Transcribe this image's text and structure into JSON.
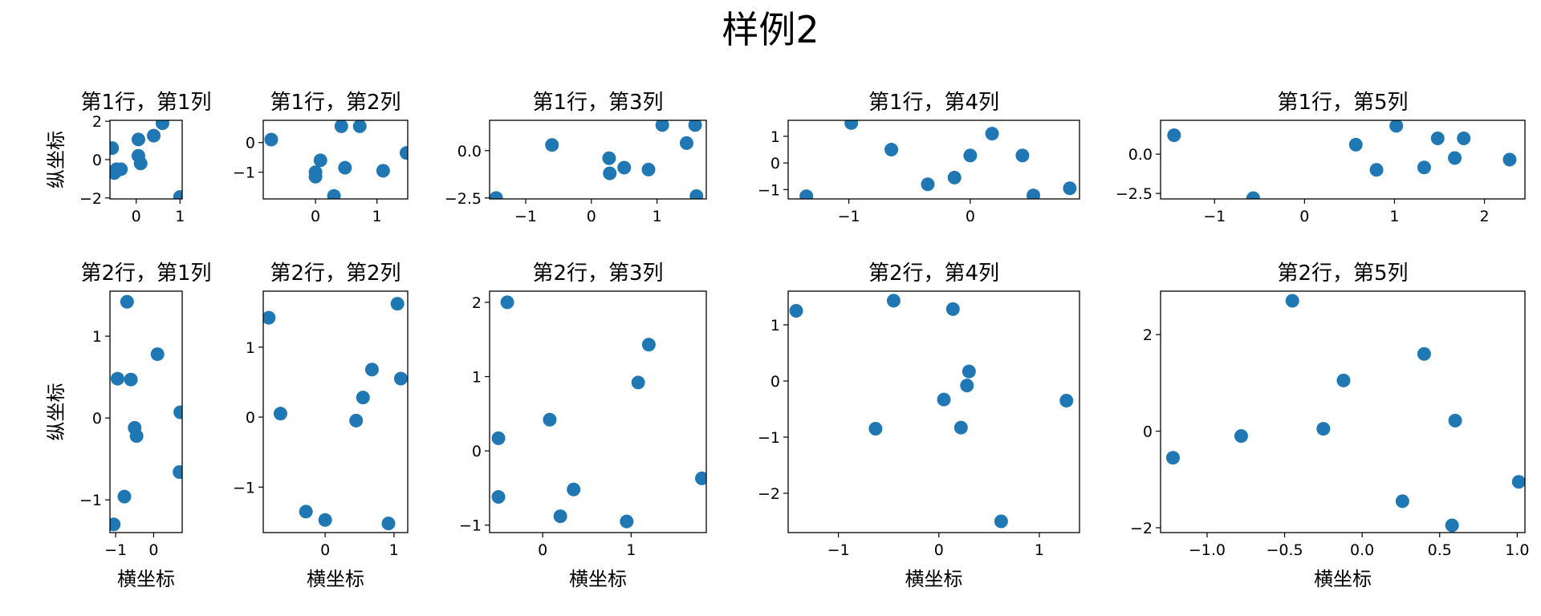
{
  "figure": {
    "suptitle": "样例2",
    "marker_color": "#1f77b4"
  },
  "chart_data": [
    {
      "type": "scatter",
      "title": "第1行，第1列",
      "xlabel": "",
      "ylabel": "纵坐标",
      "xlim": [
        -0.6,
        1.05
      ],
      "ylim": [
        -2.05,
        2.05
      ],
      "xticks": [
        {
          "v": 0,
          "label": "0"
        },
        {
          "v": 1,
          "label": "1"
        }
      ],
      "yticks": [
        {
          "v": 2,
          "label": "2"
        },
        {
          "v": 0,
          "label": "0"
        },
        {
          "v": -2,
          "label": "−2"
        }
      ],
      "x": [
        -0.55,
        -0.45,
        -0.35,
        0.05,
        0.05,
        0.1,
        0.4,
        0.6,
        1.0,
        -0.5
      ],
      "y": [
        0.6,
        -0.5,
        -0.5,
        0.2,
        1.05,
        -0.2,
        1.25,
        1.9,
        -1.95,
        -0.7
      ]
    },
    {
      "type": "scatter",
      "title": "第1行，第2列",
      "xlabel": "",
      "ylabel": "",
      "xlim": [
        -0.85,
        1.5
      ],
      "ylim": [
        -1.9,
        0.75
      ],
      "xticks": [
        {
          "v": 0,
          "label": "0"
        },
        {
          "v": 1,
          "label": "1"
        }
      ],
      "yticks": [
        {
          "v": 0,
          "label": "0"
        },
        {
          "v": -1,
          "label": "−1"
        }
      ],
      "x": [
        -0.72,
        0.0,
        0.0,
        0.08,
        0.3,
        0.42,
        0.48,
        0.72,
        1.1,
        1.48
      ],
      "y": [
        0.1,
        -1.0,
        -1.15,
        -0.6,
        -1.8,
        0.55,
        -0.85,
        0.55,
        -0.95,
        -0.35
      ],
      "ylim_note": ""
    },
    {
      "type": "scatter",
      "title": "第1行，第3列",
      "xlabel": "",
      "ylabel": "",
      "xlim": [
        -1.55,
        1.75
      ],
      "ylim": [
        -2.55,
        1.6
      ],
      "xticks": [
        {
          "v": -1,
          "label": "−1"
        },
        {
          "v": 0,
          "label": "0"
        },
        {
          "v": 1,
          "label": "1"
        }
      ],
      "yticks": [
        {
          "v": 0,
          "label": "0.0"
        },
        {
          "v": -2.5,
          "label": "−2.5"
        }
      ],
      "x": [
        -1.45,
        -0.6,
        0.27,
        0.28,
        0.5,
        0.87,
        1.08,
        1.45,
        1.58,
        1.6
      ],
      "y": [
        -2.5,
        0.3,
        -0.4,
        -1.2,
        -0.9,
        -1.0,
        1.35,
        0.4,
        1.35,
        -2.4
      ]
    },
    {
      "type": "scatter",
      "title": "第1行，第4列",
      "xlabel": "",
      "ylabel": "",
      "xlim": [
        -1.5,
        0.9
      ],
      "ylim": [
        -1.35,
        1.6
      ],
      "xticks": [
        {
          "v": -1,
          "label": "−1"
        },
        {
          "v": 0,
          "label": "0"
        }
      ],
      "yticks": [
        {
          "v": 1,
          "label": "1"
        },
        {
          "v": 0,
          "label": "0"
        },
        {
          "v": -1,
          "label": "−1"
        }
      ],
      "x": [
        -1.35,
        -0.98,
        -0.65,
        -0.35,
        -0.13,
        0.0,
        0.18,
        0.43,
        0.52,
        0.82
      ],
      "y": [
        -1.25,
        1.5,
        0.5,
        -0.8,
        -0.55,
        0.28,
        1.1,
        0.28,
        -1.22,
        -0.95
      ]
    },
    {
      "type": "scatter",
      "title": "第1行，第5列",
      "xlabel": "",
      "ylabel": "",
      "xlim": [
        -1.6,
        2.45
      ],
      "ylim": [
        -2.85,
        2.15
      ],
      "xticks": [
        {
          "v": -1,
          "label": "−1"
        },
        {
          "v": 0,
          "label": "0"
        },
        {
          "v": 1,
          "label": "1"
        },
        {
          "v": 2,
          "label": "2"
        }
      ],
      "yticks": [
        {
          "v": 0,
          "label": "0.0"
        },
        {
          "v": -2.5,
          "label": "−2.5"
        }
      ],
      "x": [
        -1.45,
        -0.57,
        0.57,
        0.8,
        1.02,
        1.33,
        1.48,
        1.67,
        1.77,
        2.28
      ],
      "y": [
        1.2,
        -2.8,
        0.6,
        -1.0,
        1.8,
        -0.85,
        1.0,
        -0.25,
        1.0,
        -0.35
      ]
    },
    {
      "type": "scatter",
      "title": "第2行，第1列",
      "xlabel": "横坐标",
      "ylabel": "纵坐标",
      "xlim": [
        -1.15,
        0.75
      ],
      "ylim": [
        -1.4,
        1.55
      ],
      "xticks": [
        {
          "v": -1,
          "label": "−1"
        },
        {
          "v": 0,
          "label": "0"
        }
      ],
      "yticks": [
        {
          "v": 1,
          "label": "1"
        },
        {
          "v": 0,
          "label": "0"
        },
        {
          "v": -1,
          "label": "−1"
        }
      ],
      "x": [
        -1.05,
        -0.95,
        -0.77,
        -0.7,
        -0.6,
        -0.5,
        -0.45,
        0.1,
        0.68,
        0.7
      ],
      "y": [
        -1.3,
        0.48,
        -0.96,
        1.42,
        0.47,
        -0.12,
        -0.22,
        0.78,
        -0.66,
        0.07
      ]
    },
    {
      "type": "scatter",
      "title": "第2行，第2列",
      "xlabel": "横坐标",
      "ylabel": "",
      "xlim": [
        -0.9,
        1.2
      ],
      "ylim": [
        -1.65,
        1.8
      ],
      "xticks": [
        {
          "v": 0,
          "label": "0"
        },
        {
          "v": 1,
          "label": "1"
        }
      ],
      "yticks": [
        {
          "v": 1,
          "label": "1"
        },
        {
          "v": 0,
          "label": "0"
        },
        {
          "v": -1,
          "label": "−1"
        }
      ],
      "x": [
        -0.82,
        -0.65,
        -0.28,
        0.0,
        0.45,
        0.55,
        0.68,
        0.92,
        1.05,
        1.1
      ],
      "y": [
        1.42,
        0.05,
        -1.35,
        -1.47,
        -0.05,
        0.28,
        0.68,
        -1.52,
        1.62,
        0.55
      ]
    },
    {
      "type": "scatter",
      "title": "第2行，第3列",
      "xlabel": "横坐标",
      "ylabel": "",
      "xlim": [
        -0.6,
        1.85
      ],
      "ylim": [
        -1.1,
        2.15
      ],
      "xticks": [
        {
          "v": 0,
          "label": "0"
        },
        {
          "v": 1,
          "label": "1"
        }
      ],
      "yticks": [
        {
          "v": 2,
          "label": "2"
        },
        {
          "v": 1,
          "label": "1"
        },
        {
          "v": 0,
          "label": "0"
        },
        {
          "v": -1,
          "label": "−1"
        }
      ],
      "x": [
        -0.5,
        -0.5,
        -0.4,
        0.08,
        0.2,
        0.35,
        0.95,
        1.08,
        1.2,
        1.8
      ],
      "y": [
        -0.62,
        0.17,
        2.0,
        0.42,
        -0.88,
        -0.52,
        -0.95,
        0.92,
        1.43,
        -0.37
      ]
    },
    {
      "type": "scatter",
      "title": "第2行，第4列",
      "xlabel": "横坐标",
      "ylabel": "",
      "xlim": [
        -1.5,
        1.4
      ],
      "ylim": [
        -2.7,
        1.6
      ],
      "xticks": [
        {
          "v": -1,
          "label": "−1"
        },
        {
          "v": 0,
          "label": "0"
        },
        {
          "v": 1,
          "label": "1"
        }
      ],
      "yticks": [
        {
          "v": 1,
          "label": "1"
        },
        {
          "v": 0,
          "label": "0"
        },
        {
          "v": -1,
          "label": "−1"
        },
        {
          "v": -2,
          "label": "−2"
        }
      ],
      "x": [
        -1.42,
        -0.63,
        -0.45,
        0.05,
        0.14,
        0.22,
        0.28,
        0.3,
        0.62,
        1.27
      ],
      "y": [
        1.25,
        -0.85,
        1.43,
        -0.33,
        1.28,
        -0.83,
        -0.08,
        0.17,
        -2.5,
        -0.35
      ]
    },
    {
      "type": "scatter",
      "title": "第2行，第5列",
      "xlabel": "横坐标",
      "ylabel": "",
      "xlim": [
        -1.3,
        1.05
      ],
      "ylim": [
        -2.1,
        2.9
      ],
      "xticks": [
        {
          "v": -1,
          "label": "−1.0"
        },
        {
          "v": -0.5,
          "label": "−0.5"
        },
        {
          "v": 0,
          "label": "0.0"
        },
        {
          "v": 0.5,
          "label": "0.5"
        },
        {
          "v": 1,
          "label": "1.0"
        }
      ],
      "yticks": [
        {
          "v": 2,
          "label": "2"
        },
        {
          "v": 0,
          "label": "0"
        },
        {
          "v": -2,
          "label": "−2"
        }
      ],
      "x": [
        -1.22,
        -0.78,
        -0.45,
        -0.25,
        -0.12,
        0.26,
        0.4,
        0.58,
        0.6,
        1.01
      ],
      "y": [
        -0.55,
        -0.1,
        2.7,
        0.05,
        1.05,
        -1.45,
        1.6,
        -1.95,
        0.22,
        -1.05
      ]
    }
  ]
}
